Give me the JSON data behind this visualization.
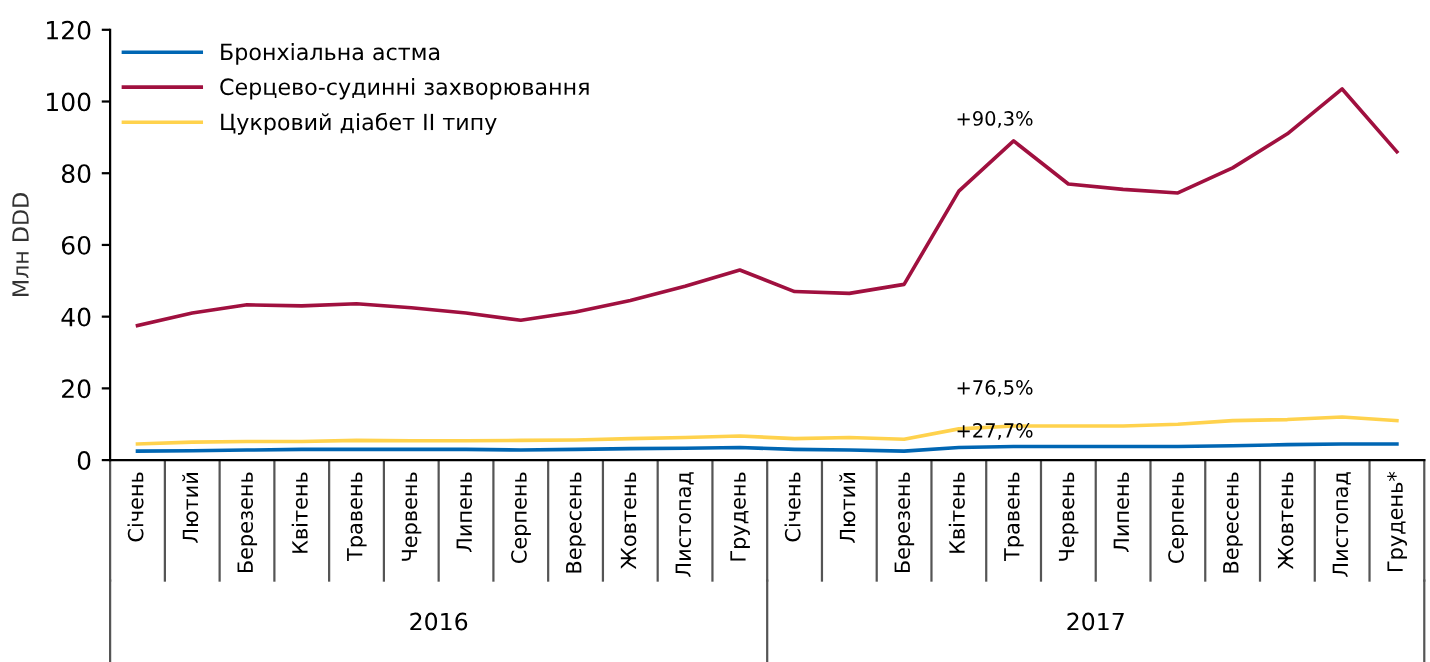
{
  "chart_data": {
    "type": "line",
    "ylabel": "Млн DDD",
    "ylim": [
      0,
      120
    ],
    "yticks": [
      0,
      20,
      40,
      60,
      80,
      100,
      120
    ],
    "grid": false,
    "legend": "top left",
    "marker": "none",
    "line_style": "solid",
    "categories": [
      "Січень",
      "Лютий",
      "Березень",
      "Квітень",
      "Травень",
      "Червень",
      "Липень",
      "Серпень",
      "Вересень",
      "Жовтень",
      "Листопад",
      "Грудень",
      "Січень",
      "Лютий",
      "Березень",
      "Квітень",
      "Травень",
      "Червень",
      "Липень",
      "Серпень",
      "Вересень",
      "Жовтень",
      "Листопад",
      "Грудень*"
    ],
    "series": [
      {
        "name": "Бронхіальна астма",
        "color": "#0066b3",
        "values": [
          2.5,
          2.6,
          2.8,
          3,
          3,
          3,
          3,
          2.8,
          3,
          3.2,
          3.3,
          3.5,
          3,
          2.8,
          2.5,
          3.5,
          3.8,
          3.8,
          3.8,
          3.8,
          4,
          4.3,
          4.5,
          4.5
        ]
      },
      {
        "name": "Серцево-судинні захворювання",
        "color": "#a0103f",
        "values": [
          37.5,
          41,
          43.3,
          43,
          43.6,
          42.5,
          41,
          39,
          41.3,
          44.5,
          48.5,
          53,
          47,
          46.5,
          49,
          75,
          89,
          77,
          75.5,
          74.5,
          81.5,
          91,
          103.5,
          86
        ]
      },
      {
        "name": "Цукровий діабет ІІ типу",
        "color": "#ffd24d",
        "values": [
          4.5,
          5,
          5.2,
          5.2,
          5.5,
          5.4,
          5.4,
          5.5,
          5.6,
          6,
          6.3,
          6.7,
          6,
          6.3,
          5.8,
          8.7,
          9.5,
          9.5,
          9.5,
          10,
          11,
          11.3,
          12,
          11
        ]
      }
    ],
    "annotations": [
      "+90,3%",
      "+76,5%",
      "+27,7%",
      "2016",
      "2017"
    ]
  }
}
